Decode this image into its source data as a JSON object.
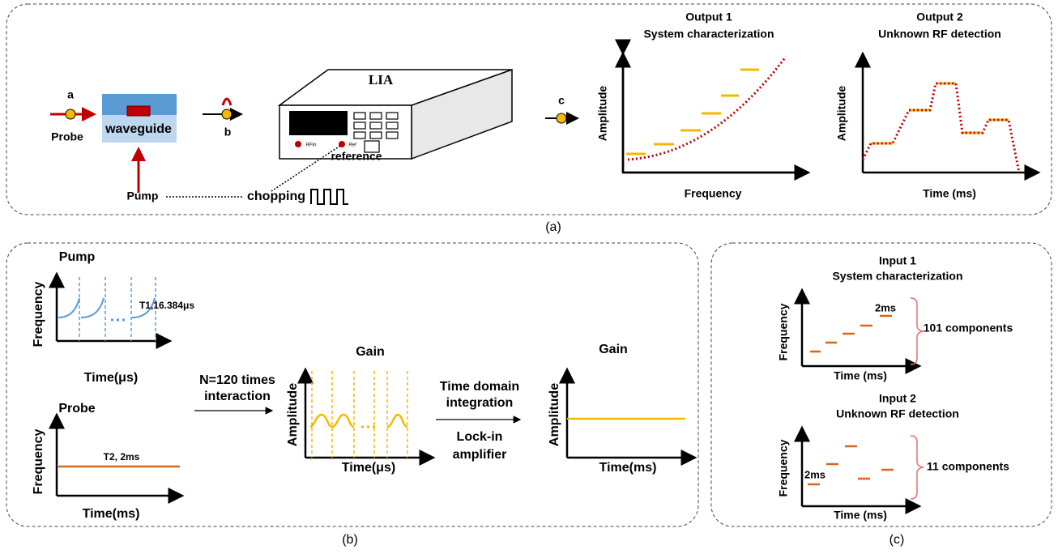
{
  "panel_a": {
    "label": "(a)",
    "probe_marker": "a",
    "probe": "Probe",
    "waveguide": "waveguide",
    "pump": "Pump",
    "chopping": "chopping",
    "b_marker": "b",
    "lia": "LIA",
    "rf_in": "RFin",
    "ref": "Ref",
    "reference": "reference",
    "c_marker": "c",
    "output_1": {
      "title": [
        "Output 1",
        "System  characterization"
      ],
      "y_label": "Amplitude",
      "x_label": "Frequency"
    },
    "output_2": {
      "title": [
        "Output 2",
        "Unknown RF detection"
      ],
      "y_label": "Amplitude",
      "x_label": "Time (ms)"
    }
  },
  "panel_b": {
    "label": "(b)",
    "pump": {
      "title": "Pump",
      "y_label": "Frequency",
      "x_label": "Time(μs)",
      "period": "T1,16.384μs"
    },
    "probe": {
      "title": "Probe",
      "y_label": "Frequency",
      "x_label": "Time(ms)",
      "period": "T2, 2ms"
    },
    "interaction": [
      "N=120 times",
      "interaction"
    ],
    "gain_1": {
      "title": "Gain",
      "y_label": "Amplitude",
      "x_label": "Time(μs)"
    },
    "integration": [
      "Time domain",
      "integration"
    ],
    "lock_in": [
      "Lock-in",
      "amplifier"
    ],
    "gain_2": {
      "title": "Gain",
      "y_label": "Amplitude",
      "x_label": "Time(ms)"
    }
  },
  "panel_c": {
    "label": "(c)",
    "input_1": {
      "title": [
        "Input 1",
        "System characterization"
      ],
      "y_label": "Frequency",
      "x_label": "Time (ms)",
      "duration": "2ms",
      "components": "101 components"
    },
    "input_2": {
      "title": [
        "Input 2",
        "Unknown RF detection"
      ],
      "y_label": "Frequency",
      "x_label": "Time (ms)",
      "duration": "2ms",
      "components": "11 components"
    }
  }
}
